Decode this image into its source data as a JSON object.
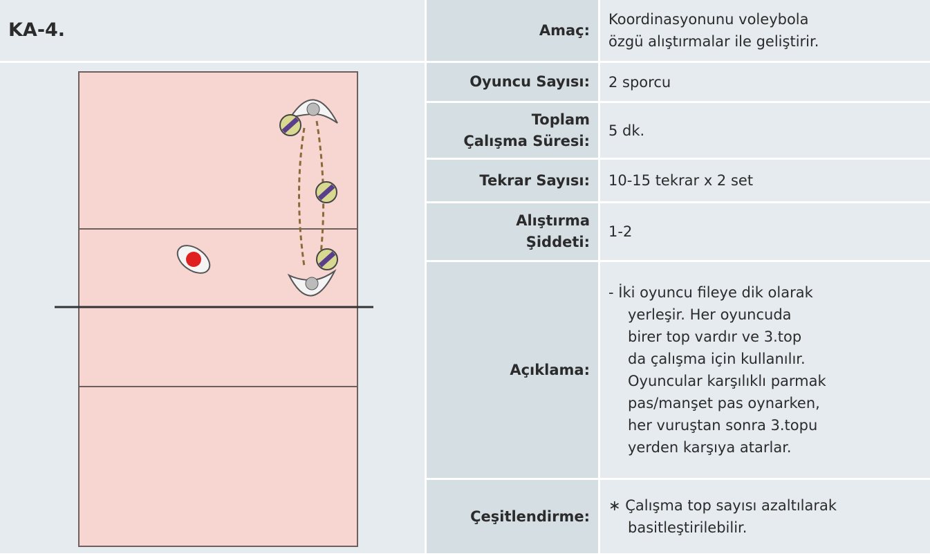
{
  "title": "KA-4.",
  "rows": [
    {
      "label": [
        "Amaç:"
      ],
      "value": [
        "Koordinasyonunu voleybola",
        "özgü alıştırmalar ile geliştirir."
      ]
    },
    {
      "label": [
        "Oyuncu Sayısı:"
      ],
      "value": [
        "2 sporcu"
      ]
    },
    {
      "label": [
        "Toplam",
        "Çalışma Süresi:"
      ],
      "value": [
        "5 dk."
      ]
    },
    {
      "label": [
        "Tekrar Sayısı:"
      ],
      "value": [
        "10-15 tekrar x 2 set"
      ]
    },
    {
      "label": [
        "Alıştırma",
        "Şiddeti:"
      ],
      "value": [
        "1-2"
      ]
    },
    {
      "label": [
        "Açıklama:"
      ],
      "value": [
        "- İki oyuncu fileye dik olarak",
        "yerleşir. Her oyuncuda",
        "birer top vardır ve 3.top",
        "da çalışma için kullanılır.",
        "Oyuncular karşılıklı parmak",
        "pas/manşet pas oynarken,",
        "her vuruştan sonra 3.topu",
        "yerden karşıya atarlar."
      ]
    },
    {
      "label": [
        "Çeşitlendirme:"
      ],
      "value": [
        "∗ Çalışma top sayısı azaltılarak",
        "basitleştirilebilir."
      ]
    }
  ]
}
